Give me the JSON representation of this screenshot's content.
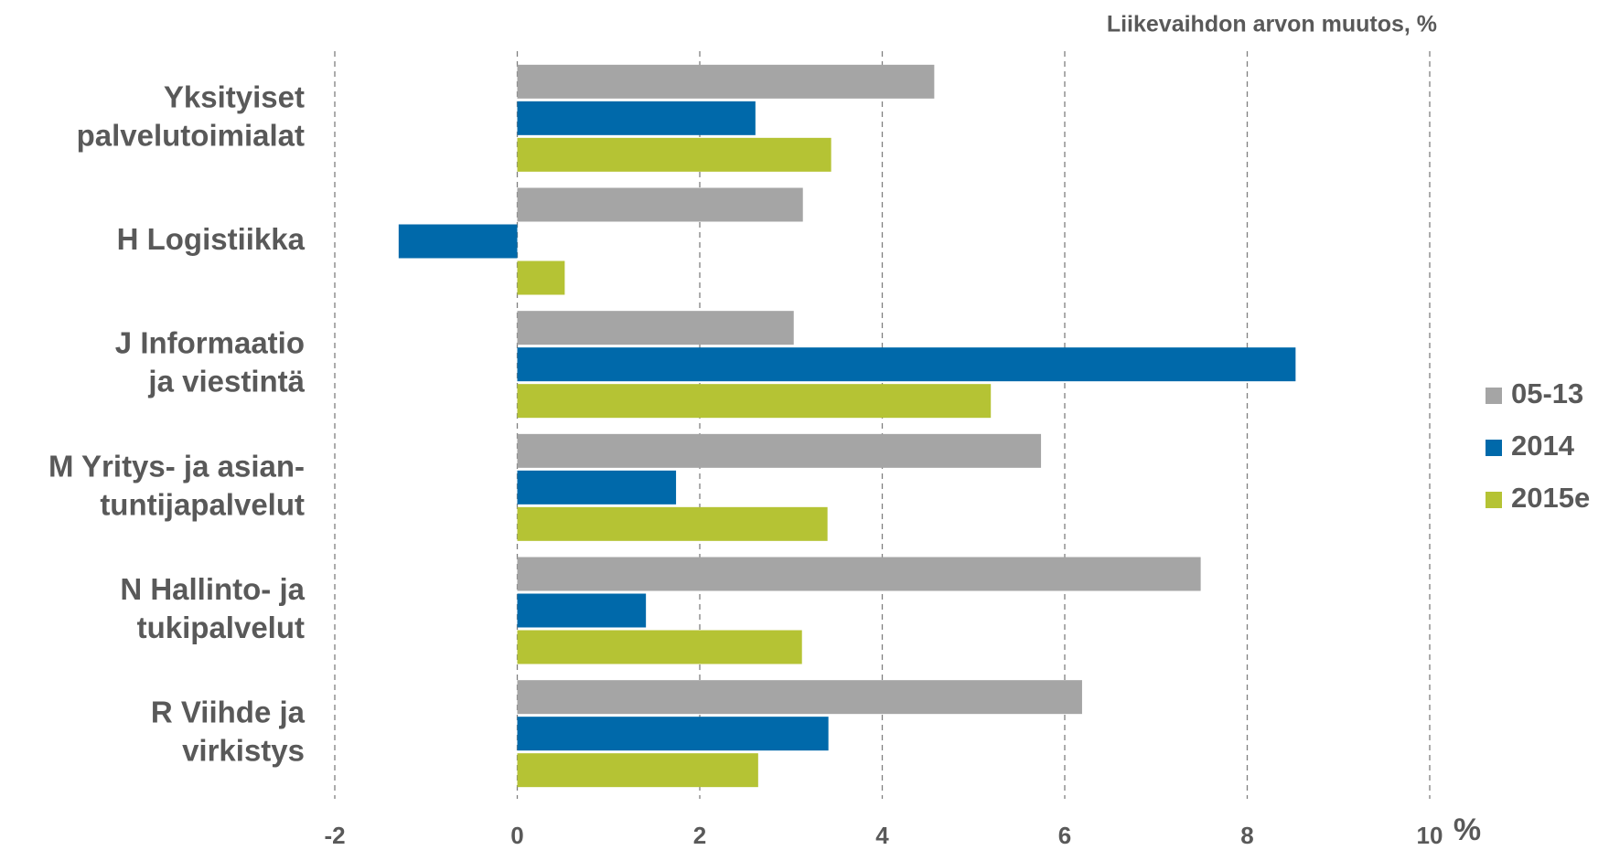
{
  "chart_data": {
    "type": "bar",
    "orientation": "horizontal",
    "title": "Liikevaihdon arvon muutos, %",
    "x_unit": "%",
    "categories": [
      "Yksityiset\npalvelutoimialat",
      "H Logistiikka",
      "J Informaatio\nja viestintä",
      "M Yritys- ja asian-\ntuntijapalvelut",
      "N Hallinto- ja\ntukipalvelut",
      "R Viihde ja\nvirkistys"
    ],
    "series": [
      {
        "name": "05-13",
        "color": "#a5a5a5",
        "values": [
          4.57,
          3.13,
          3.03,
          5.74,
          7.49,
          6.19
        ]
      },
      {
        "name": "2014",
        "color": "#0069aa",
        "values": [
          2.61,
          -1.3,
          8.53,
          1.74,
          1.41,
          3.41
        ]
      },
      {
        "name": "2015e",
        "color": "#b5c334",
        "values": [
          3.44,
          0.52,
          5.19,
          3.4,
          3.12,
          2.64
        ]
      }
    ],
    "xlim": [
      -2,
      10
    ],
    "xticks": [
      -2,
      0,
      2,
      4,
      6,
      8,
      10
    ],
    "grid": true,
    "legend": "right"
  }
}
